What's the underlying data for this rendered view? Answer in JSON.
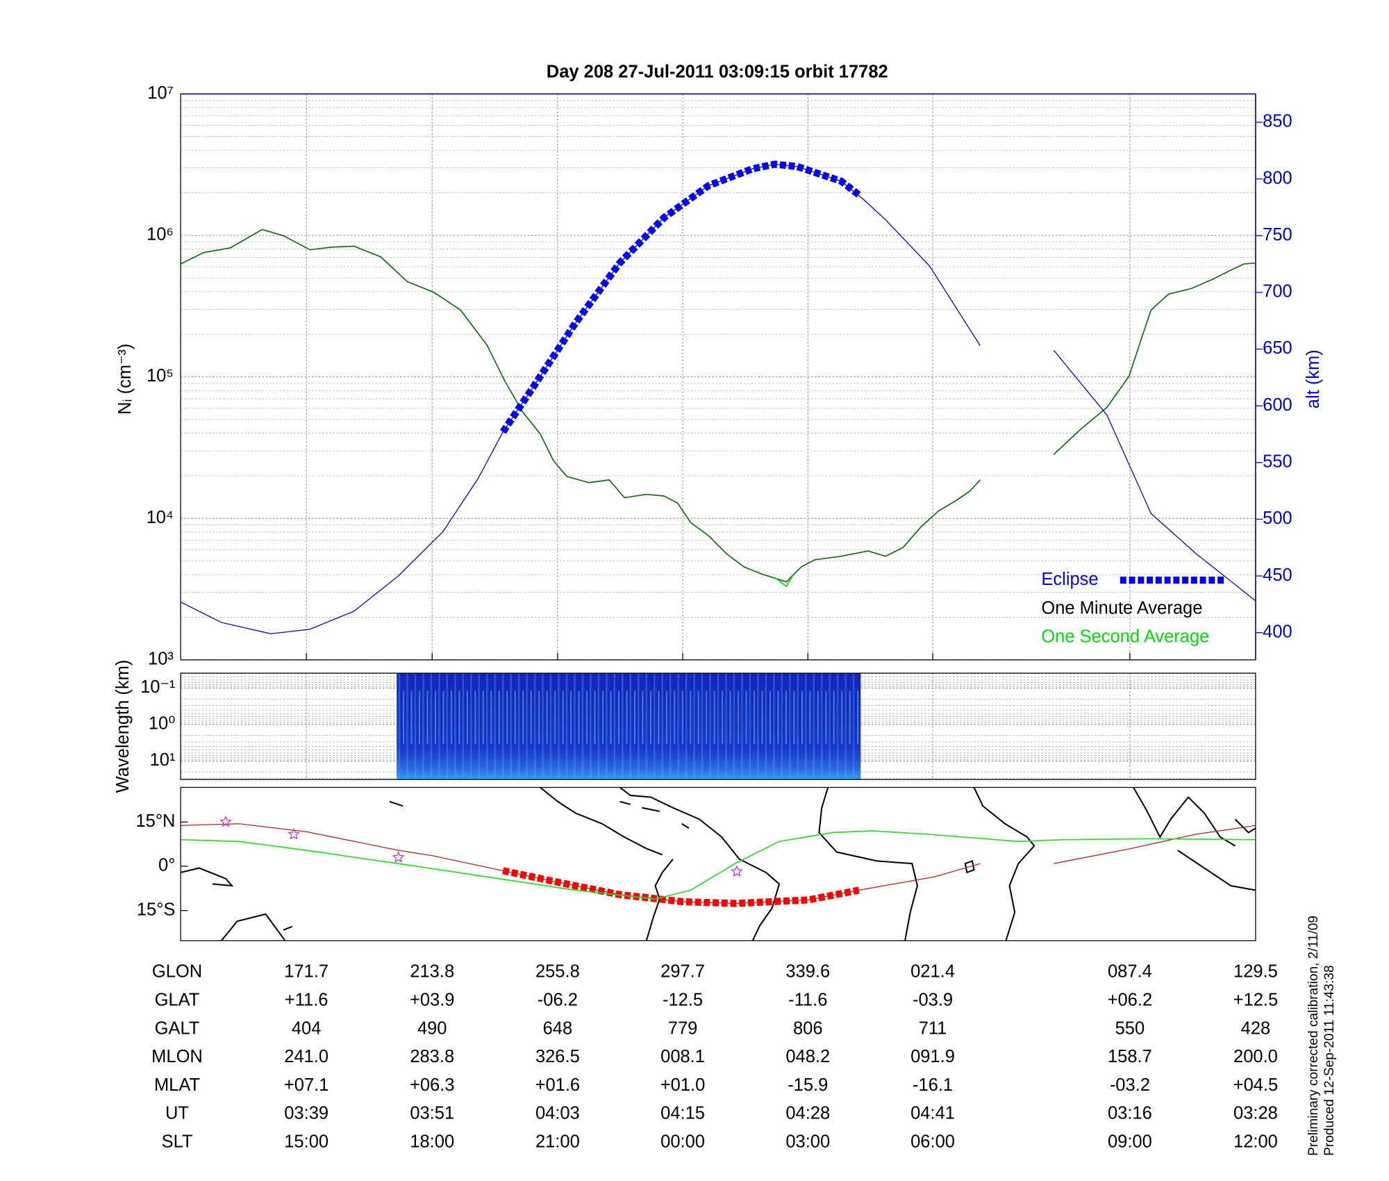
{
  "chart_data": [
    {
      "type": "line",
      "title": "Day 208  27-Jul-2011 03:09:15   orbit 17782",
      "ylabel": "Nᵢ (cm⁻³)",
      "y2label": "alt (km)",
      "xlabel": "GLON",
      "log_y": true,
      "grid": true,
      "legend": "lower right",
      "xlim": [
        129.6,
        489.5
      ],
      "xticks": [
        171.7,
        213.8,
        255.8,
        297.7,
        339.6,
        {
          "value": 381.4,
          "label": "021.4"
        },
        {
          "value": 447.4,
          "label": "087.4"
        },
        {
          "value": 489.5,
          "label": "129.5"
        }
      ],
      "ylim": [
        1000,
        10000000
      ],
      "yticks": [
        {
          "value": 1000,
          "label": "10³"
        },
        {
          "value": 10000,
          "label": "10⁴"
        },
        {
          "value": 100000,
          "label": "10⁵"
        },
        {
          "value": 1000000,
          "label": "10⁶"
        },
        {
          "value": 10000000,
          "label": "10⁷"
        }
      ],
      "y2lim": [
        376,
        875
      ],
      "y2ticks": [
        400,
        450,
        500,
        550,
        600,
        650,
        700,
        750,
        800,
        850
      ],
      "series": [
        {
          "name": "One Minute Average",
          "color": "#0b6b0b",
          "style": "line",
          "x": [
            129.6,
            137.3,
            146.2,
            156.9,
            164.0,
            172.9,
            180.3,
            187.7,
            196.6,
            205.5,
            214.4,
            223.3,
            232.2,
            238.1,
            244.1,
            250.0,
            254.4,
            258.9,
            266.3,
            273.1,
            278.2,
            285.6,
            291.5,
            296.0,
            300.4,
            306.4,
            312.3,
            318.2,
            324.1,
            332.4,
            337.4,
            341.9,
            350.8,
            359.7,
            365.6,
            371.5,
            377.4,
            383.4,
            389.3,
            393.7,
            397.3,
            null,
            421.9,
            430.8,
            439.7,
            447.1,
            451.5,
            454.5,
            460.4,
            467.9,
            475.3,
            481.2,
            485.6,
            489.5
          ],
          "values": [
            628000,
            757000,
            815000,
            1100000,
            995000,
            791000,
            826000,
            838000,
            705000,
            471000,
            396000,
            297000,
            167000,
            93700,
            56600,
            39500,
            25600,
            19800,
            17900,
            18700,
            14000,
            14800,
            14400,
            12800,
            9340,
            7520,
            5640,
            4540,
            4050,
            3560,
            4540,
            5100,
            5400,
            5890,
            5400,
            6240,
            8690,
            11300,
            13400,
            15500,
            18700,
            null,
            28300,
            42400,
            60800,
            101000,
            193000,
            297000,
            385000,
            420000,
            492000,
            568000,
            628000,
            637000
          ]
        },
        {
          "name": "One Second Average",
          "color": "#00dd00",
          "style": "line",
          "x": [
            328.5,
            332.4,
            334.5
          ],
          "values": [
            3820,
            3310,
            3930
          ]
        },
        {
          "color": "#0000cc",
          "style": "thin",
          "axis": "y2",
          "x": [
            129.6,
            143.2,
            159.8,
            172.9,
            187.7,
            202.5,
            217.4,
            229.2,
            237.5,
            247.0,
            261.8,
            276.6,
            291.5,
            306.3,
            321.1,
            328.5,
            336.0,
            350.8,
            358.2,
            365.6,
            380.4,
            397.3,
            null,
            421.9,
            439.7,
            454.5,
            469.4,
            489.5
          ],
          "values": [
            427,
            409,
            399,
            403,
            419,
            450,
            489,
            536,
            577,
            614,
            673,
            726,
            766,
            794,
            809,
            813,
            811,
            798,
            782,
            764,
            723,
            653,
            null,
            649,
            592,
            505,
            470,
            428
          ]
        },
        {
          "name": "Eclipse",
          "color": "#0000ff",
          "style": "thick-dashed",
          "axis": "y2",
          "x": [
            237.5,
            247.0,
            261.8,
            276.6,
            291.5,
            306.3,
            321.1,
            328.5,
            336.0,
            350.8,
            356.7
          ],
          "values": [
            577,
            614,
            673,
            726,
            766,
            794,
            809,
            813,
            811,
            798,
            786
          ]
        }
      ]
    },
    {
      "type": "spectrogram",
      "ylabel": "Wavelength (km)",
      "log_y": true,
      "invert_y": true,
      "grid": true,
      "ylim": [
        0.039,
        32
      ],
      "yticks": [
        {
          "value": 0.1,
          "label": "10⁻¹"
        },
        {
          "value": 1,
          "label": "10⁰"
        },
        {
          "value": 10,
          "label": "10¹"
        }
      ]
    },
    {
      "type": "map",
      "ylim": [
        -25.2,
        26.7
      ],
      "yticks": [
        {
          "value": 15,
          "label": "15°N"
        },
        {
          "value": 0,
          "label": "0°"
        },
        {
          "value": -15,
          "label": "15°S"
        }
      ],
      "series": [
        {
          "color": "#b22222",
          "style": "thin",
          "x": [
            129.6,
            149.2,
            171.7,
            202.5,
            213.8,
            237.5,
            255.9,
            276.6,
            297.7,
            315.2,
            339.8,
            356.7,
            381.9,
            397.3,
            null,
            421.9,
            447.7,
            469.4,
            489.5
          ],
          "values": [
            13.8,
            14.4,
            11.7,
            5.4,
            3.6,
            -1.5,
            -5.4,
            -9.6,
            -12.0,
            -12.6,
            -11.4,
            -8.1,
            -3.6,
            0.9,
            null,
            0.9,
            6.0,
            10.8,
            13.8
          ]
        },
        {
          "color": "#ff0000",
          "style": "thick-dashed",
          "x": [
            237.5,
            255.9,
            276.6,
            297.7,
            315.2,
            339.8,
            356.7
          ],
          "values": [
            -1.5,
            -5.4,
            -9.6,
            -12.0,
            -12.6,
            -11.4,
            -8.1
          ]
        },
        {
          "color": "#22dd22",
          "style": "line",
          "x": [
            129.6,
            149.2,
            171.7,
            202.5,
            232.2,
            261.8,
            288.5,
            300.4,
            315.2,
            330.0,
            347.8,
            361.1,
            380.4,
            410.0,
            424.9,
            454.5,
            489.5
          ],
          "values": [
            9.0,
            8.4,
            5.4,
            0.9,
            -3.6,
            -8.1,
            -11.1,
            -8.1,
            0.9,
            8.4,
            11.4,
            12.0,
            10.8,
            8.4,
            9.0,
            9.3,
            9.0
          ]
        },
        {
          "color": "#cc33cc",
          "style": "star",
          "x": [
            144.7,
            167.5,
            202.5,
            315.8
          ],
          "values": [
            15.0,
            10.8,
            3.0,
            -1.8
          ]
        }
      ]
    }
  ],
  "table": {
    "rows": [
      {
        "label": "GLAT",
        "cells": [
          "+11.6",
          "+03.9",
          "-06.2",
          "-12.5",
          "-11.6",
          "-03.9",
          "+06.2",
          "+12.5"
        ]
      },
      {
        "label": "GALT",
        "cells": [
          "404",
          "490",
          "648",
          "779",
          "806",
          "711",
          "550",
          "428"
        ]
      },
      {
        "label": "MLON",
        "cells": [
          "241.0",
          "283.8",
          "326.5",
          "008.1",
          "048.2",
          "091.9",
          "158.7",
          "200.0"
        ]
      },
      {
        "label": "MLAT",
        "cells": [
          "+07.1",
          "+06.3",
          "+01.6",
          "+01.0",
          "-15.9",
          "-16.1",
          "-03.2",
          "+04.5"
        ]
      },
      {
        "label": "UT",
        "cells": [
          "03:39",
          "03:51",
          "04:03",
          "04:15",
          "04:28",
          "04:41",
          "03:16",
          "03:28"
        ]
      },
      {
        "label": "SLT",
        "cells": [
          "15:00",
          "18:00",
          "21:00",
          "00:00",
          "03:00",
          "06:00",
          "09:00",
          "12:00"
        ]
      }
    ]
  },
  "notes": [
    "Preliminary corrected calibration, 2/11/09",
    "Produced 12-Sep-2011 11:43:38"
  ]
}
